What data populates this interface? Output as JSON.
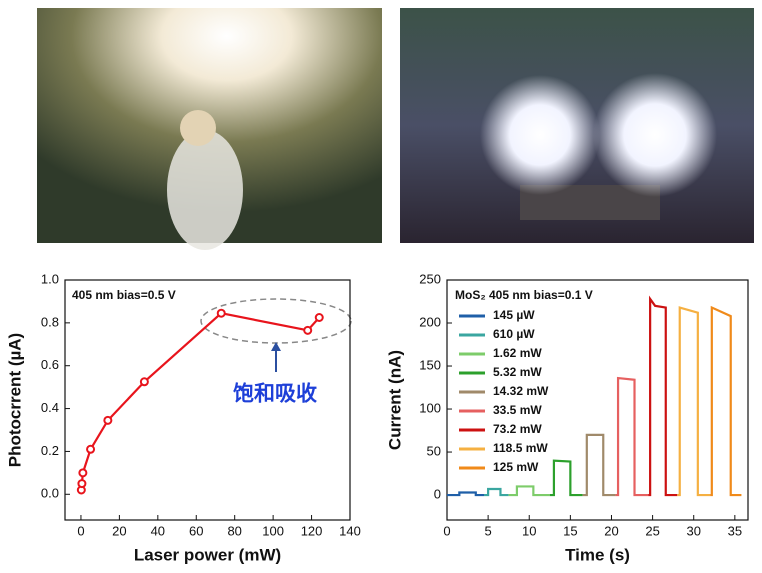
{
  "chart_data": [
    {
      "type": "line",
      "x_label": "Laser power (mW)",
      "y_label": "Photocrrent (µA)",
      "annotations": [
        "405 nm  bias=0.5 V",
        "饱和吸收"
      ],
      "x": [
        0.2,
        0.5,
        1,
        5,
        14,
        33,
        73,
        118,
        124
      ],
      "values": [
        0.02,
        0.05,
        0.1,
        0.21,
        0.345,
        0.525,
        0.845,
        0.765,
        0.825
      ],
      "color": "#e8141c",
      "markers": true,
      "xlim": [
        -8.3,
        140
      ],
      "xticks": [
        0,
        20,
        40,
        60,
        80,
        100,
        120,
        140
      ],
      "ylim": [
        -0.12,
        1.0
      ],
      "yticks": [
        {
          "value": 0,
          "label": "0.0"
        },
        {
          "value": 0.2,
          "label": "0.2"
        },
        {
          "value": 0.4,
          "label": "0.4"
        },
        {
          "value": 0.6,
          "label": "0.6"
        },
        {
          "value": 0.8,
          "label": "0.8"
        },
        {
          "value": 1.0,
          "label": "1.0"
        }
      ]
    },
    {
      "type": "line",
      "x_label": "Time (s)",
      "y_label": "Current (nA)",
      "annotations": [
        "MoS₂  405 nm  bias=0.1 V"
      ],
      "legend": "upper left",
      "xlim": [
        0,
        36.6
      ],
      "xticks": [
        0,
        5,
        10,
        15,
        20,
        25,
        30,
        35
      ],
      "ylim": [
        -29,
        250
      ],
      "yticks": [
        0,
        50,
        100,
        150,
        200,
        250
      ],
      "series": [
        {
          "name": "145 µW",
          "color": "#1f5fa8",
          "x": [
            0,
            1.5,
            1.5,
            3.5,
            3.5,
            4.5
          ],
          "values": [
            0,
            0,
            3,
            3,
            0,
            0
          ]
        },
        {
          "name": "610 µW",
          "color": "#3aa6a0",
          "x": [
            4.5,
            5,
            5,
            6.5,
            6.5,
            7.5
          ],
          "values": [
            0,
            0,
            7,
            7,
            0,
            0
          ]
        },
        {
          "name": "1.62 mW",
          "color": "#7dcc6a",
          "x": [
            7.5,
            8.5,
            8.5,
            10.5,
            10.5,
            12.5
          ],
          "values": [
            0,
            0,
            10,
            10,
            0,
            0
          ]
        },
        {
          "name": "5.32 mW",
          "color": "#2ca02c",
          "x": [
            12.5,
            13,
            13,
            15,
            15,
            16.5
          ],
          "values": [
            0,
            0,
            40,
            39,
            0,
            0
          ]
        },
        {
          "name": "14.32 mW",
          "color": "#a08a6a",
          "x": [
            16.5,
            17,
            17,
            19,
            19,
            20.5
          ],
          "values": [
            0,
            0,
            70,
            70,
            0,
            0
          ]
        },
        {
          "name": "33.5 mW",
          "color": "#e66060",
          "x": [
            20.5,
            20.8,
            20.8,
            22.8,
            22.8,
            24.5
          ],
          "values": [
            0,
            0,
            136,
            134,
            0,
            0
          ]
        },
        {
          "name": "73.2 mW",
          "color": "#cc1111",
          "x": [
            24.5,
            24.7,
            24.7,
            25.3,
            26.6,
            26.6,
            28
          ],
          "values": [
            0,
            0,
            228,
            220,
            218,
            0,
            0
          ]
        },
        {
          "name": "118.5 mW",
          "color": "#f5b042",
          "x": [
            28,
            28.3,
            28.3,
            30.5,
            30.5,
            32
          ],
          "values": [
            0,
            0,
            218,
            212,
            0,
            0
          ]
        },
        {
          "name": "125 mW",
          "color": "#f08a1a",
          "x": [
            32,
            32.2,
            32.2,
            34.5,
            34.5,
            35.8
          ],
          "values": [
            0,
            0,
            218,
            208,
            0,
            0
          ]
        }
      ]
    }
  ]
}
